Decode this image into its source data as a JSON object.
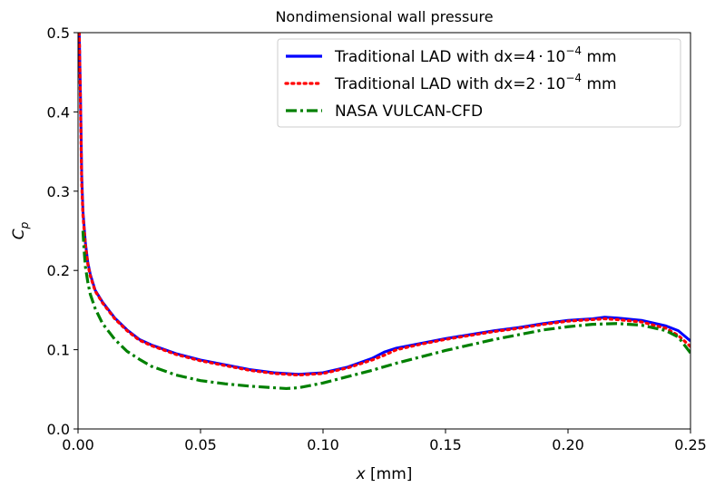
{
  "chart_data": {
    "type": "line",
    "title": "Nondimensional wall pressure",
    "xlabel": {
      "var": "x",
      "unit": " [mm]"
    },
    "ylabel": {
      "base": "C",
      "sub": "p"
    },
    "xlim": [
      0.0,
      0.25
    ],
    "ylim": [
      0.0,
      0.5
    ],
    "xticks": [
      "0.00",
      "0.05",
      "0.10",
      "0.15",
      "0.20",
      "0.25"
    ],
    "yticks": [
      "0.0",
      "0.1",
      "0.2",
      "0.3",
      "0.4",
      "0.5"
    ],
    "legend_position": "top-right",
    "series": [
      {
        "name": {
          "pre": "Traditional LAD with dx=4",
          "dot": "·",
          "base": "10",
          "exp": "−4",
          "post": " mm"
        },
        "color": "#0000ff",
        "style": "solid",
        "x": [
          0.0005,
          0.001,
          0.0015,
          0.002,
          0.003,
          0.004,
          0.005,
          0.007,
          0.01,
          0.015,
          0.02,
          0.025,
          0.03,
          0.04,
          0.05,
          0.06,
          0.07,
          0.08,
          0.09,
          0.1,
          0.11,
          0.12,
          0.125,
          0.13,
          0.14,
          0.15,
          0.16,
          0.17,
          0.18,
          0.19,
          0.2,
          0.21,
          0.215,
          0.22,
          0.23,
          0.24,
          0.245,
          0.25
        ],
        "y": [
          0.5,
          0.42,
          0.32,
          0.275,
          0.235,
          0.21,
          0.195,
          0.175,
          0.16,
          0.14,
          0.125,
          0.113,
          0.106,
          0.095,
          0.087,
          0.081,
          0.075,
          0.071,
          0.069,
          0.071,
          0.078,
          0.089,
          0.097,
          0.102,
          0.108,
          0.114,
          0.119,
          0.124,
          0.128,
          0.133,
          0.137,
          0.139,
          0.141,
          0.14,
          0.137,
          0.13,
          0.124,
          0.111
        ]
      },
      {
        "name": {
          "pre": "Traditional LAD with dx=2",
          "dot": "·",
          "base": "10",
          "exp": "−4",
          "post": " mm"
        },
        "color": "#ff0000",
        "style": "dotted",
        "x": [
          0.0005,
          0.001,
          0.0015,
          0.002,
          0.003,
          0.004,
          0.005,
          0.007,
          0.01,
          0.015,
          0.02,
          0.025,
          0.03,
          0.04,
          0.05,
          0.06,
          0.07,
          0.08,
          0.09,
          0.1,
          0.11,
          0.12,
          0.125,
          0.13,
          0.14,
          0.15,
          0.16,
          0.17,
          0.18,
          0.19,
          0.2,
          0.21,
          0.215,
          0.22,
          0.23,
          0.24,
          0.245,
          0.25
        ],
        "y": [
          0.5,
          0.41,
          0.31,
          0.27,
          0.232,
          0.208,
          0.193,
          0.174,
          0.159,
          0.139,
          0.124,
          0.112,
          0.105,
          0.094,
          0.086,
          0.08,
          0.074,
          0.07,
          0.068,
          0.07,
          0.077,
          0.087,
          0.093,
          0.1,
          0.107,
          0.113,
          0.118,
          0.123,
          0.127,
          0.132,
          0.136,
          0.138,
          0.139,
          0.138,
          0.135,
          0.127,
          0.118,
          0.104
        ]
      },
      {
        "name": {
          "pre": "NASA VULCAN-CFD",
          "dot": "",
          "base": "",
          "exp": "",
          "post": ""
        },
        "color": "#008000",
        "style": "dashdot",
        "x": [
          0.002,
          0.0025,
          0.003,
          0.004,
          0.005,
          0.007,
          0.01,
          0.015,
          0.02,
          0.025,
          0.03,
          0.04,
          0.05,
          0.06,
          0.07,
          0.08,
          0.085,
          0.09,
          0.1,
          0.11,
          0.12,
          0.13,
          0.14,
          0.15,
          0.16,
          0.17,
          0.18,
          0.19,
          0.2,
          0.21,
          0.22,
          0.23,
          0.24,
          0.245,
          0.25
        ],
        "y": [
          0.25,
          0.225,
          0.205,
          0.185,
          0.17,
          0.152,
          0.133,
          0.113,
          0.098,
          0.088,
          0.079,
          0.068,
          0.061,
          0.057,
          0.054,
          0.052,
          0.051,
          0.052,
          0.058,
          0.066,
          0.074,
          0.083,
          0.091,
          0.099,
          0.106,
          0.113,
          0.119,
          0.125,
          0.129,
          0.132,
          0.133,
          0.131,
          0.124,
          0.116,
          0.096
        ]
      }
    ]
  }
}
